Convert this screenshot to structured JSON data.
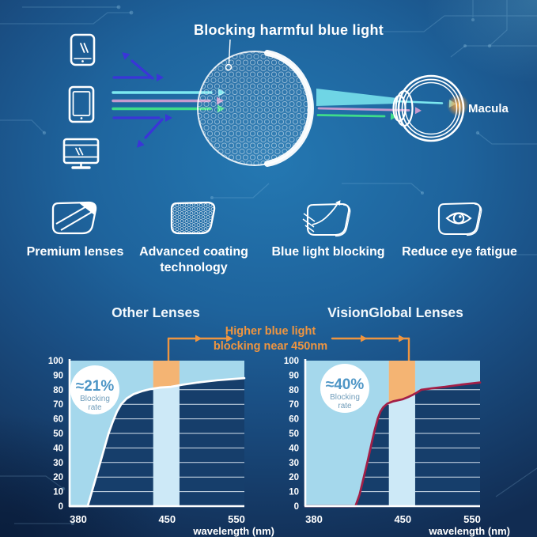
{
  "hero": {
    "title": "Blocking harmful blue light",
    "macula_label": "Macula",
    "device_icons": [
      "smartphone-icon",
      "tablet-icon",
      "monitor-icon"
    ],
    "ray_colors": {
      "reflected_blue": "#3a35d8",
      "cyan": "#7ce8f0",
      "violet": "#c79ace",
      "green": "#3fdc8a"
    }
  },
  "features": [
    {
      "icon": "premium-lens-icon",
      "label": "Premium lenses"
    },
    {
      "icon": "coating-hex-icon",
      "label": "Advanced coating technology"
    },
    {
      "icon": "blue-light-deflect-icon",
      "label": "Blue light blocking"
    },
    {
      "icon": "eye-in-lens-icon",
      "label": "Reduce eye fatigue"
    }
  ],
  "comparison": {
    "annotation_line1": "Higher blue light",
    "annotation_line2": "blocking near 450nm",
    "annotation_color": "#ef9540"
  },
  "colors": {
    "area_light_blue": "#a5d8ec",
    "band_light": "#cde9f7",
    "band_highlight_orange": "#f4b473",
    "curve_white": "#ffffff",
    "curve_crimson": "#a31f47",
    "plot_background": "#163e6b",
    "macula_glow": "#ffb14d"
  },
  "chart_data": [
    {
      "type": "area",
      "title": "Other Lenses",
      "badge": {
        "value": "≈21%",
        "line1": "Blocking",
        "line2": "rate"
      },
      "xlabel": "wavelength (nm)",
      "x_ticks": [
        380,
        450,
        550
      ],
      "y_ticks": [
        0,
        10,
        20,
        30,
        40,
        50,
        60,
        70,
        80,
        90,
        100
      ],
      "ylim": [
        0,
        100
      ],
      "x_range_nm": [
        380,
        550
      ],
      "highlight_band_nm": [
        440,
        466
      ],
      "curve_color": "#ffffff",
      "area_color": "#a5d8ec",
      "band_color": "#cde9f7",
      "band_highlight_color": "#f4b473",
      "points": [
        [
          380,
          0
        ],
        [
          393,
          0
        ],
        [
          396,
          10
        ],
        [
          399,
          20
        ],
        [
          402,
          30
        ],
        [
          405,
          40
        ],
        [
          408,
          50
        ],
        [
          411,
          58
        ],
        [
          414,
          65
        ],
        [
          417,
          70
        ],
        [
          421,
          74
        ],
        [
          426,
          77
        ],
        [
          432,
          79
        ],
        [
          438,
          80.5
        ],
        [
          445,
          81.5
        ],
        [
          455,
          82
        ],
        [
          470,
          83.5
        ],
        [
          490,
          85
        ],
        [
          515,
          86.5
        ],
        [
          550,
          88
        ]
      ]
    },
    {
      "type": "area",
      "title": "VisionGlobal Lenses",
      "badge": {
        "value": "≈40%",
        "line1": "Blocking",
        "line2": "rate"
      },
      "xlabel": "wavelength (nm)",
      "x_ticks": [
        380,
        450,
        550
      ],
      "y_ticks": [
        0,
        10,
        20,
        30,
        40,
        50,
        60,
        70,
        80,
        90,
        100
      ],
      "ylim": [
        0,
        100
      ],
      "x_range_nm": [
        380,
        550
      ],
      "highlight_band_nm": [
        440,
        466
      ],
      "curve_color": "#a31f47",
      "area_color": "#a5d8ec",
      "band_color": "#cde9f7",
      "band_highlight_color": "#f4b473",
      "points": [
        [
          380,
          0
        ],
        [
          416,
          0
        ],
        [
          419,
          8
        ],
        [
          422,
          20
        ],
        [
          425,
          32
        ],
        [
          428,
          45
        ],
        [
          430,
          53
        ],
        [
          432,
          60
        ],
        [
          434,
          65
        ],
        [
          436,
          68
        ],
        [
          439,
          70.5
        ],
        [
          443,
          72
        ],
        [
          450,
          73.5
        ],
        [
          457,
          75
        ],
        [
          463,
          76.5
        ],
        [
          468,
          78
        ],
        [
          474,
          80
        ],
        [
          488,
          81
        ],
        [
          505,
          82
        ],
        [
          525,
          83.5
        ],
        [
          550,
          85
        ]
      ]
    }
  ]
}
